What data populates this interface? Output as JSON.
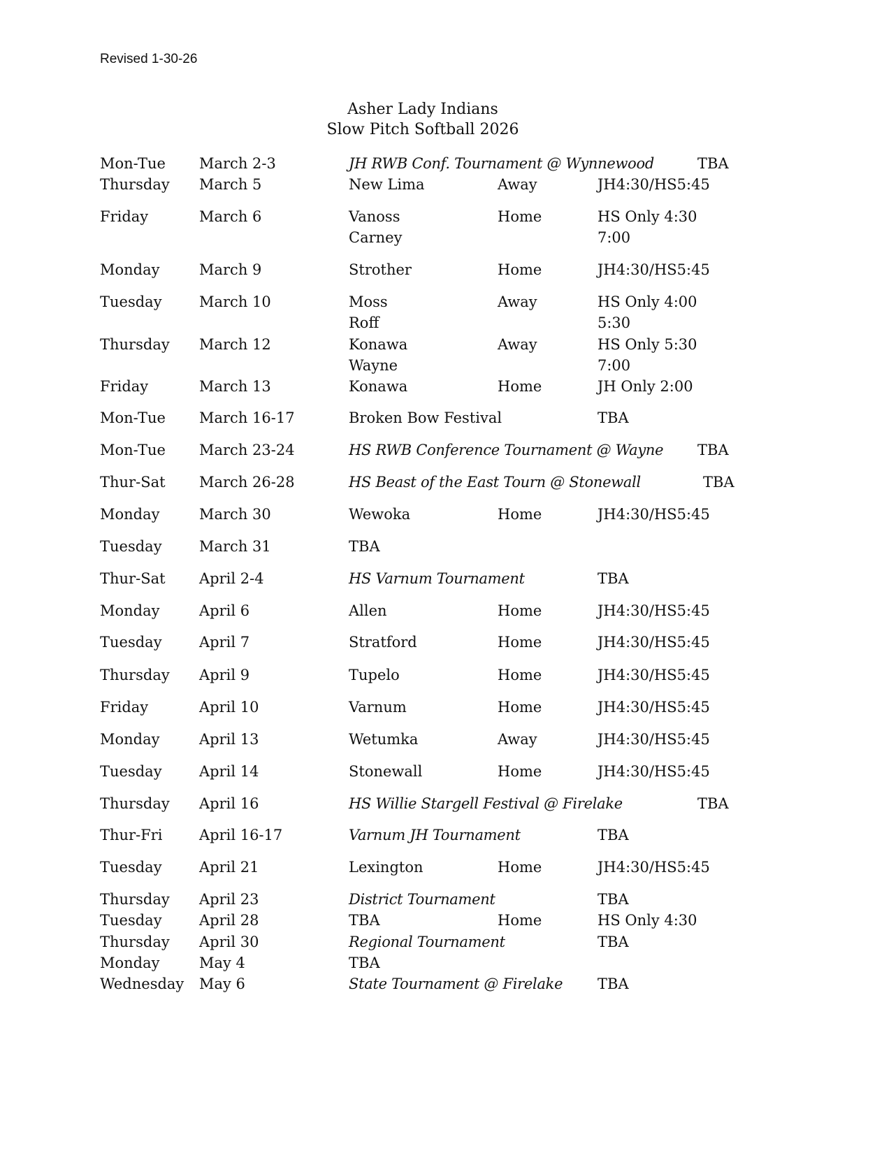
{
  "revised": "Revised 1-30-26",
  "title": "Asher Lady Indians",
  "subtitle": "Slow Pitch Softball 2026",
  "rows": [
    {
      "day": "Mon-Tue",
      "date": "March 2-3",
      "opponent": "JH RWB Conf. Tournament @ Wynnewood",
      "location": "",
      "time": "TBA",
      "italic": true
    },
    {
      "day": "Thursday",
      "date": "March 5",
      "opponent": "New Lima",
      "location": "Away",
      "time": "JH4:30/HS5:45"
    },
    {
      "day": "Friday",
      "date": "March 6",
      "opponent": "Vanoss",
      "location": "Home",
      "time": "HS Only 4:30"
    },
    {
      "day": "",
      "date": "",
      "opponent": "Carney",
      "location": "",
      "time": "7:00"
    },
    {
      "day": "Monday",
      "date": "March 9",
      "opponent": "Strother",
      "location": "Home",
      "time": "JH4:30/HS5:45"
    },
    {
      "day": "Tuesday",
      "date": "March 10",
      "opponent": "Moss",
      "location": "Away",
      "time": "HS Only 4:00"
    },
    {
      "day": "",
      "date": "",
      "opponent": "Roff",
      "location": "",
      "time": "5:30"
    },
    {
      "day": "Thursday",
      "date": "March 12",
      "opponent": "Konawa",
      "location": "Away",
      "time": "HS Only 5:30"
    },
    {
      "day": "",
      "date": "",
      "opponent": "Wayne",
      "location": "",
      "time": "7:00"
    },
    {
      "day": "Friday",
      "date": "March 13",
      "opponent": "Konawa",
      "location": "Home",
      "time": "JH Only 2:00"
    },
    {
      "day": "Mon-Tue",
      "date": "March 16-17",
      "opponent": "Broken Bow Festival",
      "location": "",
      "time": "TBA"
    },
    {
      "day": "Mon-Tue",
      "date": "March 23-24",
      "opponent": "HS RWB Conference Tournament @ Wayne",
      "location": "",
      "time": "TBA",
      "italic": true
    },
    {
      "day": "Thur-Sat",
      "date": "March 26-28",
      "opponent": "HS Beast of the East Tourn @ Stonewall",
      "location": "",
      "time": "TBA",
      "italic": true
    },
    {
      "day": "Monday",
      "date": "March 30",
      "opponent": "Wewoka",
      "location": "Home",
      "time": "JH4:30/HS5:45"
    },
    {
      "day": "Tuesday",
      "date": "March 31",
      "opponent": "TBA",
      "location": "",
      "time": ""
    },
    {
      "day": "Thur-Sat",
      "date": "April 2-4",
      "opponent": "HS Varnum Tournament",
      "location": "",
      "time": "TBA",
      "italic": true
    },
    {
      "day": "Monday",
      "date": "April 6",
      "opponent": "Allen",
      "location": "Home",
      "time": "JH4:30/HS5:45"
    },
    {
      "day": "Tuesday",
      "date": "April 7",
      "opponent": "Stratford",
      "location": "Home",
      "time": "JH4:30/HS5:45"
    },
    {
      "day": "Thursday",
      "date": "April 9",
      "opponent": "Tupelo",
      "location": "Home",
      "time": "JH4:30/HS5:45"
    },
    {
      "day": "Friday",
      "date": "April 10",
      "opponent": "Varnum",
      "location": "Home",
      "time": "JH4:30/HS5:45"
    },
    {
      "day": "Monday",
      "date": "April 13",
      "opponent": "Wetumka",
      "location": "Away",
      "time": "JH4:30/HS5:45"
    },
    {
      "day": "Tuesday",
      "date": "April 14",
      "opponent": "Stonewall",
      "location": "Home",
      "time": "JH4:30/HS5:45"
    },
    {
      "day": "Thursday",
      "date": "April 16",
      "opponent": "HS Willie Stargell Festival @ Firelake",
      "location": "",
      "time": "TBA",
      "italic": true
    },
    {
      "day": "Thur-Fri",
      "date": "April 16-17",
      "opponent": "Varnum JH Tournament",
      "location": "",
      "time": "TBA",
      "italic": true
    },
    {
      "day": "Tuesday",
      "date": "April 21",
      "opponent": "Lexington",
      "location": "Home",
      "time": "JH4:30/HS5:45"
    },
    {
      "day": "Thursday",
      "date": "April 23",
      "opponent": "District Tournament",
      "location": "",
      "time": "TBA",
      "italic": true
    },
    {
      "day": "Tuesday",
      "date": "April 28",
      "opponent": "TBA",
      "location": "Home",
      "time": "HS Only 4:30"
    },
    {
      "day": "Thursday",
      "date": "April 30",
      "opponent": "Regional Tournament",
      "location": "",
      "time": "TBA",
      "italic": true
    },
    {
      "day": "Monday",
      "date": "May 4",
      "opponent": "TBA",
      "location": "",
      "time": ""
    },
    {
      "day": "Wednesday",
      "date": "May 6",
      "opponent": "State Tournament @ Firelake",
      "location": "",
      "time": "TBA",
      "italic": true
    }
  ]
}
